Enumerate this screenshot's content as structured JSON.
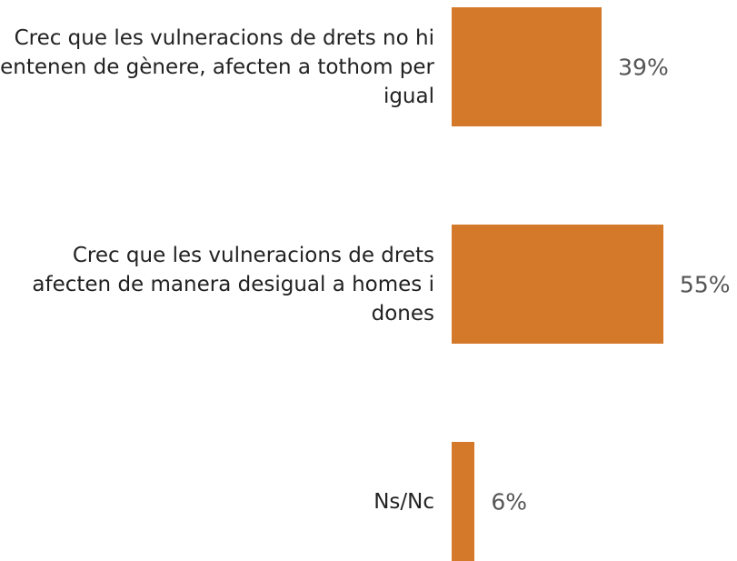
{
  "chart_data": {
    "type": "bar",
    "orientation": "horizontal",
    "categories": [
      "Crec que les vulneracions de drets no hi entenen de gènere, afecten a tothom per igual",
      "Crec que les vulneracions de drets afecten de manera desigual a homes i dones",
      "Ns/Nc"
    ],
    "values": [
      39,
      55,
      6
    ],
    "value_labels": [
      "39%",
      "55%",
      "6%"
    ],
    "color": "#d4792a"
  }
}
